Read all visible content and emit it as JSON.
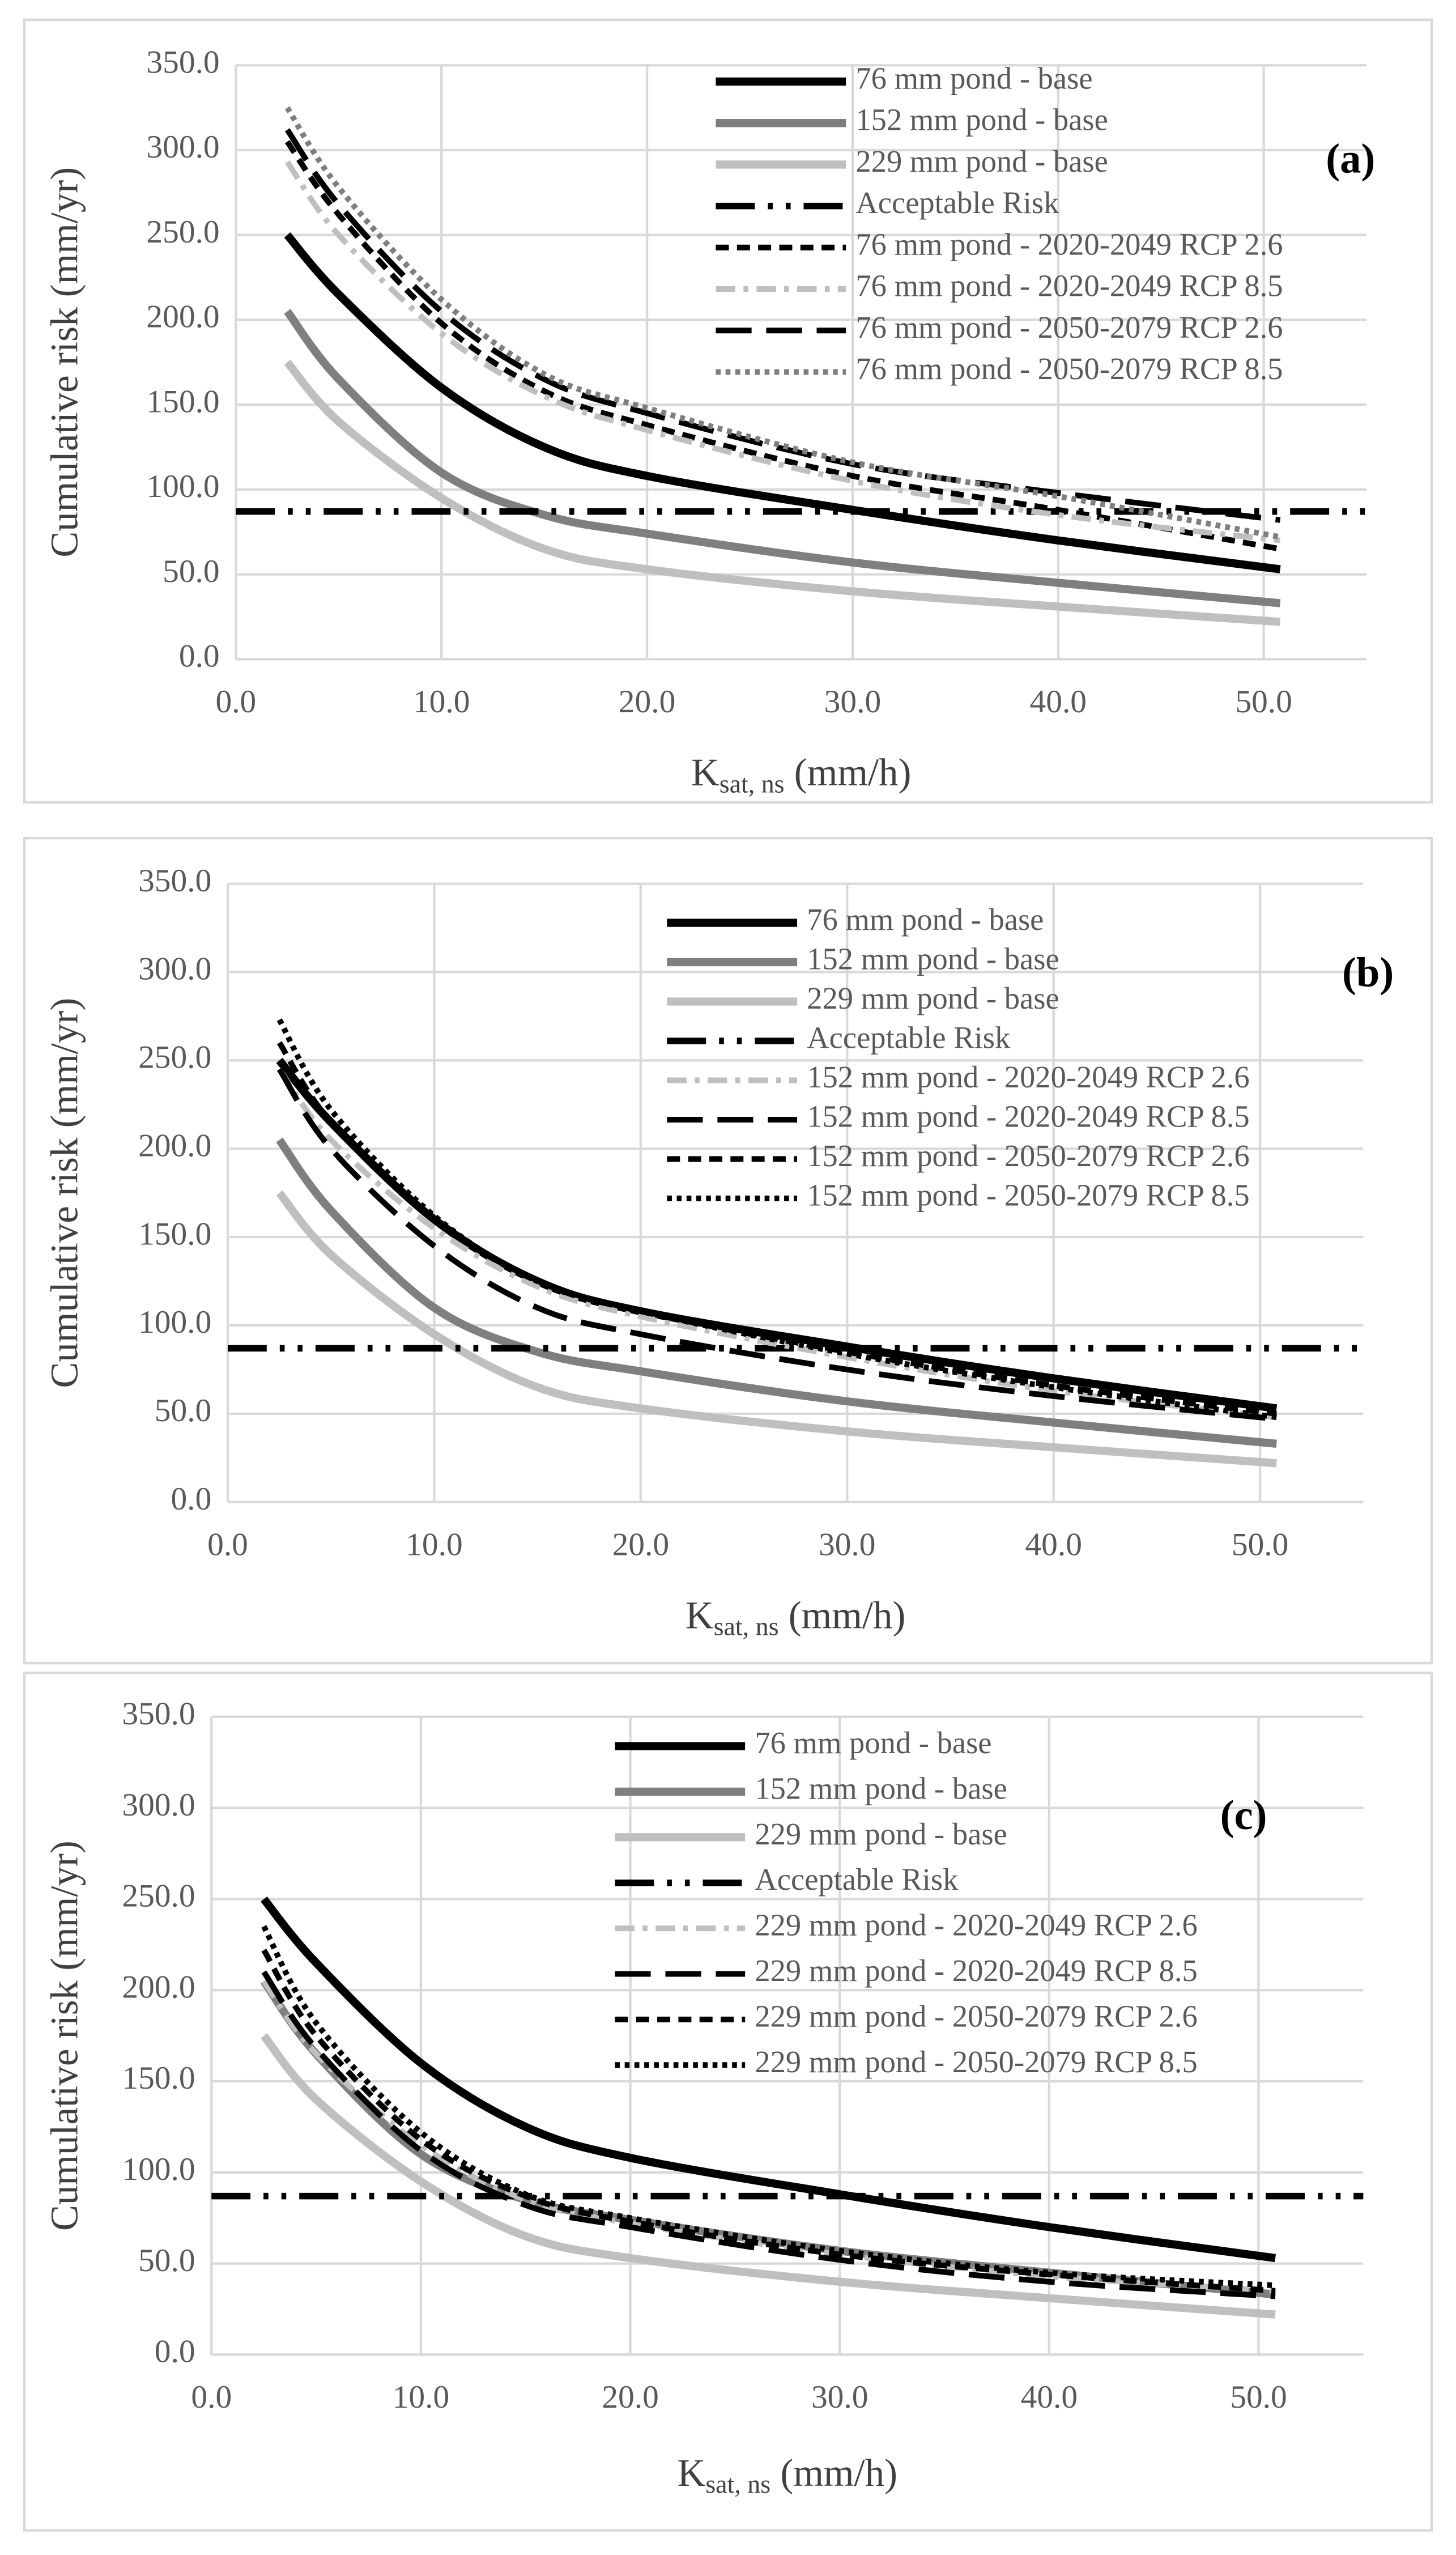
{
  "chart_data": [
    {
      "type": "line",
      "panel_label": "(a)",
      "y_label": "Cumulative risk (mm/yr)",
      "x_label": {
        "main": "K",
        "sub": "sat, ns",
        "rest": " (mm/h)"
      },
      "x": [
        2.5,
        5,
        10,
        15,
        20,
        30,
        40,
        50.8
      ],
      "xlim": [
        0,
        55
      ],
      "ylim": [
        0,
        350
      ],
      "xticks": [
        {
          "value": 0,
          "label": "0.0"
        },
        {
          "value": 10,
          "label": "10.0"
        },
        {
          "value": 20,
          "label": "20.0"
        },
        {
          "value": 30,
          "label": "30.0"
        },
        {
          "value": 40,
          "label": "40.0"
        },
        {
          "value": 50,
          "label": "50.0"
        }
      ],
      "yticks": [
        {
          "value": 0,
          "label": "0.0"
        },
        {
          "value": 50,
          "label": "50.0"
        },
        {
          "value": 100,
          "label": "100.0"
        },
        {
          "value": 150,
          "label": "150.0"
        },
        {
          "value": 200,
          "label": "200.0"
        },
        {
          "value": 250,
          "label": "250.0"
        },
        {
          "value": 300,
          "label": "300.0"
        },
        {
          "value": 350,
          "label": "350.0"
        }
      ],
      "grid": true,
      "legend": "top-right",
      "series": [
        {
          "name": "76 mm pond - base",
          "color": "#000000",
          "dash": "solid",
          "values": [
            250,
            215,
            160,
            125,
            108,
            88,
            70,
            53
          ]
        },
        {
          "name": "152 mm pond - base",
          "color": "#7f7f7f",
          "dash": "solid",
          "values": [
            205,
            165,
            110,
            85,
            74,
            57,
            45,
            33
          ]
        },
        {
          "name": "229 mm pond - base",
          "color": "#bfbfbf",
          "dash": "solid",
          "values": [
            175,
            140,
            95,
            65,
            53,
            40,
            31,
            22
          ]
        },
        {
          "name": "Acceptable Risk",
          "color": "#000000",
          "dash": "dash-dot-dot",
          "x": [
            0,
            55
          ],
          "values": [
            87,
            87
          ]
        },
        {
          "name": "76 mm pond - 2020-2049 RCP 2.6",
          "color": "#000000",
          "dash": "short-dash",
          "values": [
            305,
            262,
            198,
            158,
            138,
            108,
            88,
            65
          ]
        },
        {
          "name": "76 mm pond - 2020-2049 RCP 8.5",
          "color": "#bfbfbf",
          "dash": "dash-dot",
          "values": [
            293,
            250,
            192,
            155,
            135,
            105,
            85,
            70
          ]
        },
        {
          "name": "76 mm pond - 2050-2079 RCP 2.6",
          "color": "#000000",
          "dash": "dash",
          "values": [
            312,
            268,
            205,
            165,
            145,
            115,
            98,
            82
          ]
        },
        {
          "name": "76 mm pond - 2050-2079 RCP 8.5",
          "color": "#7f7f7f",
          "dash": "dot",
          "values": [
            325,
            278,
            212,
            168,
            148,
            116,
            96,
            72
          ]
        }
      ]
    },
    {
      "type": "line",
      "panel_label": "(b)",
      "y_label": "Cumulative risk (mm/yr)",
      "x_label": {
        "main": "K",
        "sub": "sat, ns",
        "rest": " (mm/h)"
      },
      "x": [
        2.5,
        5,
        10,
        15,
        20,
        30,
        40,
        50.8
      ],
      "xlim": [
        0,
        55
      ],
      "ylim": [
        0,
        350
      ],
      "xticks": [
        {
          "value": 0,
          "label": "0.0"
        },
        {
          "value": 10,
          "label": "10.0"
        },
        {
          "value": 20,
          "label": "20.0"
        },
        {
          "value": 30,
          "label": "30.0"
        },
        {
          "value": 40,
          "label": "40.0"
        },
        {
          "value": 50,
          "label": "50.0"
        }
      ],
      "yticks": [
        {
          "value": 0,
          "label": "0.0"
        },
        {
          "value": 50,
          "label": "50.0"
        },
        {
          "value": 100,
          "label": "100.0"
        },
        {
          "value": 150,
          "label": "150.0"
        },
        {
          "value": 200,
          "label": "200.0"
        },
        {
          "value": 250,
          "label": "250.0"
        },
        {
          "value": 300,
          "label": "300.0"
        },
        {
          "value": 350,
          "label": "350.0"
        }
      ],
      "grid": true,
      "legend": "top-right",
      "series": [
        {
          "name": "76 mm pond - base",
          "color": "#000000",
          "dash": "solid",
          "values": [
            250,
            215,
            160,
            125,
            108,
            88,
            70,
            53
          ]
        },
        {
          "name": "152 mm pond - base",
          "color": "#7f7f7f",
          "dash": "solid",
          "values": [
            205,
            165,
            110,
            85,
            74,
            57,
            45,
            33
          ]
        },
        {
          "name": "229 mm pond - base",
          "color": "#bfbfbf",
          "dash": "solid",
          "values": [
            175,
            140,
            95,
            65,
            53,
            40,
            31,
            22
          ]
        },
        {
          "name": "Acceptable Risk",
          "color": "#000000",
          "dash": "dash-dot-dot",
          "x": [
            0,
            55
          ],
          "values": [
            87,
            87
          ]
        },
        {
          "name": "152 mm pond - 2020-2049 RCP 2.6",
          "color": "#bfbfbf",
          "dash": "dash-dot",
          "values": [
            245,
            205,
            155,
            122,
            105,
            82,
            63,
            48
          ]
        },
        {
          "name": "152 mm pond - 2020-2049 RCP 8.5",
          "color": "#000000",
          "dash": "dash",
          "values": [
            245,
            200,
            145,
            110,
            95,
            75,
            60,
            47
          ]
        },
        {
          "name": "152 mm pond - 2050-2079 RCP 2.6",
          "color": "#000000",
          "dash": "short-dash",
          "values": [
            260,
            215,
            160,
            125,
            108,
            85,
            66,
            50
          ]
        },
        {
          "name": "152 mm pond - 2050-2079 RCP 8.5",
          "color": "#000000",
          "dash": "dot",
          "values": [
            273,
            222,
            162,
            125,
            108,
            84,
            65,
            48
          ]
        }
      ]
    },
    {
      "type": "line",
      "panel_label": "(c)",
      "y_label": "Cumulative risk (mm/yr)",
      "x_label": {
        "main": "K",
        "sub": "sat, ns",
        "rest": " (mm/h)"
      },
      "x": [
        2.5,
        5,
        10,
        15,
        20,
        30,
        40,
        50.8
      ],
      "xlim": [
        0,
        55
      ],
      "ylim": [
        0,
        350
      ],
      "xticks": [
        {
          "value": 0,
          "label": "0.0"
        },
        {
          "value": 10,
          "label": "10.0"
        },
        {
          "value": 20,
          "label": "20.0"
        },
        {
          "value": 30,
          "label": "30.0"
        },
        {
          "value": 40,
          "label": "40.0"
        },
        {
          "value": 50,
          "label": "50.0"
        }
      ],
      "yticks": [
        {
          "value": 0,
          "label": "0.0"
        },
        {
          "value": 50,
          "label": "50.0"
        },
        {
          "value": 100,
          "label": "100.0"
        },
        {
          "value": 150,
          "label": "150.0"
        },
        {
          "value": 200,
          "label": "200.0"
        },
        {
          "value": 250,
          "label": "250.0"
        },
        {
          "value": 300,
          "label": "300.0"
        },
        {
          "value": 350,
          "label": "350.0"
        }
      ],
      "grid": true,
      "legend": "top-right",
      "series": [
        {
          "name": "76 mm pond - base",
          "color": "#000000",
          "dash": "solid",
          "values": [
            250,
            215,
            160,
            125,
            108,
            88,
            70,
            53
          ]
        },
        {
          "name": "152 mm pond - base",
          "color": "#7f7f7f",
          "dash": "solid",
          "values": [
            205,
            165,
            110,
            85,
            74,
            57,
            45,
            33
          ]
        },
        {
          "name": "229 mm pond - base",
          "color": "#bfbfbf",
          "dash": "solid",
          "values": [
            175,
            140,
            95,
            65,
            53,
            40,
            31,
            22
          ]
        },
        {
          "name": "Acceptable Risk",
          "color": "#000000",
          "dash": "dash-dot-dot",
          "x": [
            0,
            55
          ],
          "values": [
            87,
            87
          ]
        },
        {
          "name": "229 mm pond - 2020-2049 RCP 2.6",
          "color": "#bfbfbf",
          "dash": "dash-dot",
          "values": [
            205,
            165,
            115,
            85,
            72,
            55,
            43,
            35
          ]
        },
        {
          "name": "229 mm pond - 2020-2049 RCP 8.5",
          "color": "#000000",
          "dash": "dash",
          "values": [
            210,
            168,
            112,
            82,
            70,
            52,
            40,
            32
          ]
        },
        {
          "name": "229 mm pond - 2050-2079 RCP 2.6",
          "color": "#000000",
          "dash": "short-dash",
          "values": [
            222,
            175,
            118,
            87,
            73,
            55,
            44,
            35
          ]
        },
        {
          "name": "229 mm pond - 2050-2079 RCP 8.5",
          "color": "#000000",
          "dash": "dot",
          "values": [
            235,
            182,
            122,
            88,
            75,
            57,
            45,
            38
          ]
        }
      ]
    }
  ]
}
